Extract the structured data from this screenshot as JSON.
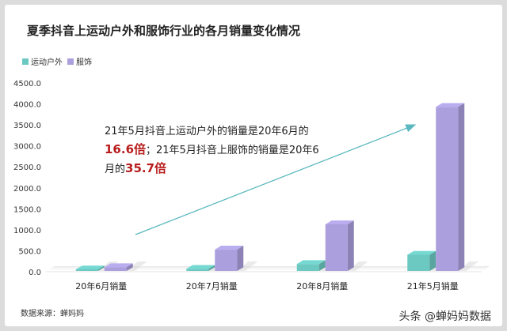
{
  "title": "夏季抖音上运动户外和服饰行业的各月销量变化情况",
  "annotation": {
    "part1": "21年5月抖音上运动户外的销量是20年6月的",
    "value1": "16.6倍",
    "part2": "；21年5月抖音上服饰的销量是20年6月的",
    "value2": "35.7倍"
  },
  "source": "数据来源：蝉妈妈",
  "watermark": "头条 @蝉妈妈数据",
  "colors": {
    "sports": "#6cc9c2",
    "apparel": "#ab9fdd",
    "highlight": "#b91c1c",
    "arrow": "#5bb8c0"
  },
  "chart_data": {
    "type": "bar",
    "categories": [
      "20年6月销量",
      "20年7月销量",
      "20年8月销量",
      "21年5月销量"
    ],
    "series": [
      {
        "name": "运动户外",
        "values": [
          24.5,
          70,
          185,
          405
        ]
      },
      {
        "name": "服饰",
        "values": [
          110,
          530,
          1130,
          3930
        ]
      }
    ],
    "ylim": [
      0,
      4500
    ],
    "yticks": [
      "0.0",
      "500.0",
      "1000.0",
      "1500.0",
      "2000.0",
      "2500.0",
      "3000.0",
      "3500.0",
      "4000.0",
      "4500.0"
    ],
    "legend_position": "top-left",
    "grid": false
  }
}
